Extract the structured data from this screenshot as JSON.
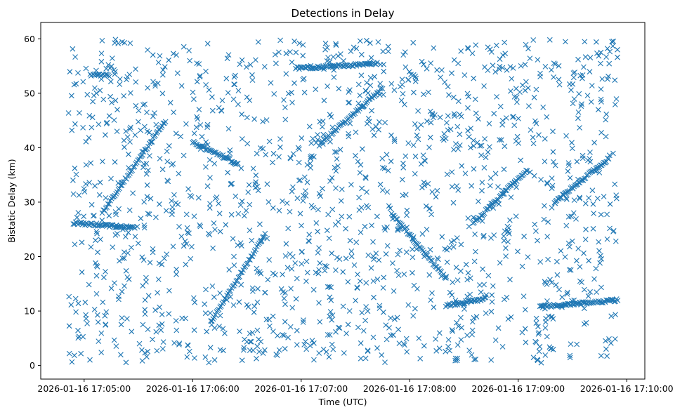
{
  "chart_data": {
    "type": "scatter",
    "title": "Detections in Delay",
    "xlabel": "Time (UTC)",
    "ylabel": "Bistatic Delay (km)",
    "marker": "x",
    "color": "#1f77b4",
    "grid": false,
    "legend": "none",
    "x_unit": "time (UTC)",
    "xlim": [
      "2026-01-16 17:04:36",
      "2026-01-16 17:10:10"
    ],
    "ylim": [
      -2.5,
      63
    ],
    "xticks": [
      "2026-01-16 17:05:00",
      "2026-01-16 17:06:00",
      "2026-01-16 17:07:00",
      "2026-01-16 17:08:00",
      "2026-01-16 17:09:00",
      "2026-01-16 17:10:00"
    ],
    "yticks": [
      "0",
      "10",
      "20",
      "30",
      "40",
      "50",
      "60"
    ],
    "ytick_values": [
      0,
      10,
      20,
      30,
      40,
      50,
      60
    ],
    "data_range": {
      "x_start": "2026-01-16 17:04:51",
      "x_end": "2026-01-16 17:09:55"
    },
    "tracks": [
      {
        "x_start": "2026-01-16 17:04:54",
        "x_end": "2026-01-16 17:05:28",
        "y_start": 26.2,
        "y_end": 25.3
      },
      {
        "x_start": "2026-01-16 17:05:05",
        "x_end": "2026-01-16 17:05:14",
        "y_start": 53.5,
        "y_end": 53.2
      },
      {
        "x_start": "2026-01-16 17:06:57",
        "x_end": "2026-01-16 17:07:42",
        "y_start": 54.6,
        "y_end": 55.4
      },
      {
        "x_start": "2026-01-16 17:08:20",
        "x_end": "2026-01-16 17:08:42",
        "y_start": 11.0,
        "y_end": 12.3
      },
      {
        "x_start": "2026-01-16 17:09:12",
        "x_end": "2026-01-16 17:09:55",
        "y_start": 10.8,
        "y_end": 12.0
      },
      {
        "x_start": "2026-01-16 17:07:10",
        "x_end": "2026-01-16 17:07:45",
        "y_start": 40.5,
        "y_end": 51.0
      },
      {
        "x_start": "2026-01-16 17:06:10",
        "x_end": "2026-01-16 17:06:40",
        "y_start": 8.0,
        "y_end": 24.0
      },
      {
        "x_start": "2026-01-16 17:05:10",
        "x_end": "2026-01-16 17:05:45",
        "y_start": 28.0,
        "y_end": 45.0
      },
      {
        "x_start": "2026-01-16 17:08:35",
        "x_end": "2026-01-16 17:09:05",
        "y_start": 26.0,
        "y_end": 36.0
      },
      {
        "x_start": "2026-01-16 17:07:50",
        "x_end": "2026-01-16 17:08:20",
        "y_start": 28.0,
        "y_end": 16.0
      },
      {
        "x_start": "2026-01-16 17:06:00",
        "x_end": "2026-01-16 17:06:25",
        "y_start": 41.0,
        "y_end": 37.0
      },
      {
        "x_start": "2026-01-16 17:09:20",
        "x_end": "2026-01-16 17:09:50",
        "y_start": 30.0,
        "y_end": 38.0
      }
    ]
  }
}
